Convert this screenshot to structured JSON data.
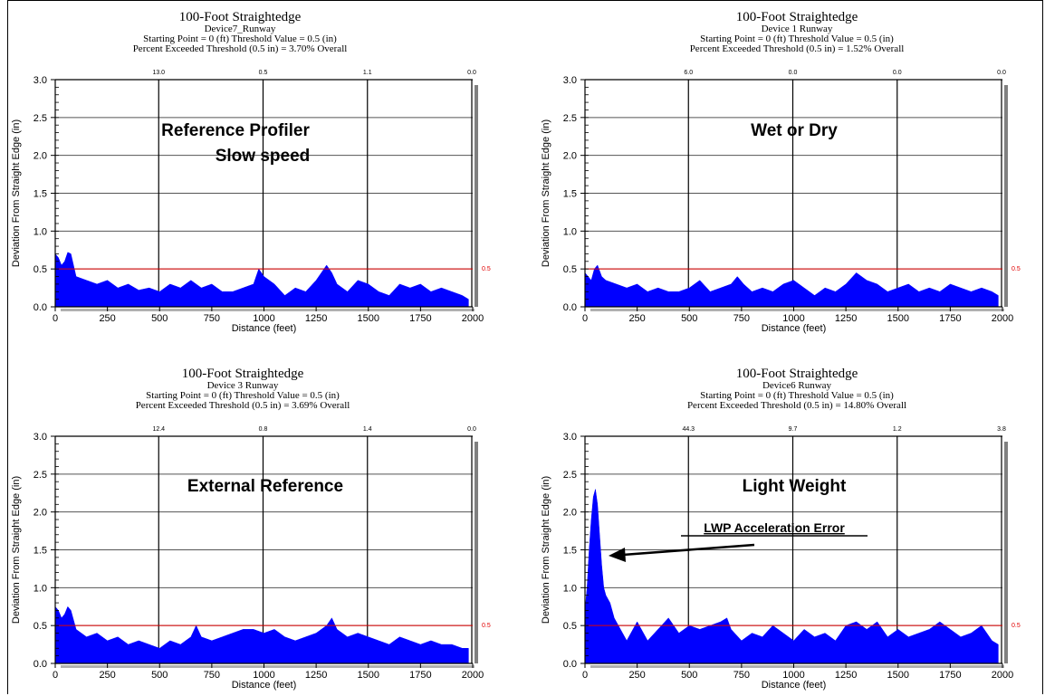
{
  "chart_data": [
    {
      "type": "area",
      "title": "100-Foot Straightedge",
      "subtitle": "Device7_Runway",
      "info_line": "Starting Point = 0 (ft)    Threshold Value = 0.5 (in)",
      "exceed_line": "Percent Exceeded Threshold (0.5 in) = 3.70% Overall",
      "annotation": [
        "Reference Profiler",
        "Slow speed"
      ],
      "xlabel": "Distance (feet)",
      "ylabel": "Deviation From Straight Edge (in)",
      "xlim": [
        0,
        2000
      ],
      "ylim": [
        0,
        3
      ],
      "xticks": [
        "0",
        "250",
        "500",
        "750",
        "1000",
        "1250",
        "1500",
        "1750",
        "2000"
      ],
      "yticks": [
        "0.0",
        "0.5",
        "1.0",
        "1.5",
        "2.0",
        "2.5",
        "3.0"
      ],
      "segment_labels": [
        "13.0",
        "0.5",
        "1.1",
        "0.0"
      ],
      "threshold": 0.5,
      "threshold_label": "0.5",
      "threshold_color": "#e00000",
      "fill_color": "#0000ff",
      "x": [
        0,
        15,
        30,
        45,
        60,
        75,
        100,
        150,
        200,
        250,
        300,
        350,
        400,
        450,
        500,
        550,
        600,
        650,
        700,
        750,
        800,
        850,
        900,
        950,
        975,
        1000,
        1050,
        1100,
        1150,
        1200,
        1250,
        1275,
        1300,
        1325,
        1350,
        1400,
        1450,
        1500,
        1550,
        1600,
        1650,
        1700,
        1750,
        1800,
        1850,
        1900,
        1950,
        1980
      ],
      "y": [
        0.7,
        0.65,
        0.55,
        0.6,
        0.72,
        0.7,
        0.4,
        0.35,
        0.3,
        0.35,
        0.25,
        0.3,
        0.22,
        0.25,
        0.2,
        0.3,
        0.25,
        0.35,
        0.25,
        0.3,
        0.2,
        0.2,
        0.25,
        0.3,
        0.5,
        0.4,
        0.3,
        0.15,
        0.25,
        0.2,
        0.35,
        0.45,
        0.55,
        0.45,
        0.3,
        0.2,
        0.35,
        0.3,
        0.2,
        0.15,
        0.3,
        0.25,
        0.3,
        0.2,
        0.25,
        0.2,
        0.15,
        0.1
      ]
    },
    {
      "type": "area",
      "title": "100-Foot Straightedge",
      "subtitle": "Device 1 Runway",
      "info_line": "Starting Point = 0 (ft)    Threshold Value = 0.5 (in)",
      "exceed_line": "Percent Exceeded Threshold (0.5 in) = 1.52% Overall",
      "annotation": [
        "Wet or Dry"
      ],
      "xlabel": "Distance (feet)",
      "ylabel": "Deviation From Straight Edge (in)",
      "xlim": [
        0,
        2000
      ],
      "ylim": [
        0,
        3
      ],
      "xticks": [
        "0",
        "250",
        "500",
        "750",
        "1000",
        "1250",
        "1500",
        "1750",
        "2000"
      ],
      "yticks": [
        "0.0",
        "0.5",
        "1.0",
        "1.5",
        "2.0",
        "2.5",
        "3.0"
      ],
      "segment_labels": [
        "6.0",
        "0.0",
        "0.0",
        "0.0"
      ],
      "threshold": 0.5,
      "threshold_label": "0.5",
      "threshold_color": "#e00000",
      "fill_color": "#0000ff",
      "x": [
        0,
        15,
        30,
        45,
        60,
        80,
        100,
        150,
        200,
        250,
        300,
        350,
        400,
        450,
        500,
        550,
        600,
        650,
        700,
        730,
        760,
        800,
        850,
        900,
        950,
        1000,
        1050,
        1100,
        1150,
        1200,
        1250,
        1300,
        1350,
        1400,
        1450,
        1500,
        1550,
        1600,
        1650,
        1700,
        1750,
        1800,
        1850,
        1900,
        1950,
        1980
      ],
      "y": [
        0.45,
        0.4,
        0.35,
        0.5,
        0.55,
        0.4,
        0.35,
        0.3,
        0.25,
        0.3,
        0.2,
        0.25,
        0.2,
        0.2,
        0.25,
        0.35,
        0.2,
        0.25,
        0.3,
        0.4,
        0.3,
        0.2,
        0.25,
        0.2,
        0.3,
        0.35,
        0.25,
        0.15,
        0.25,
        0.2,
        0.3,
        0.45,
        0.35,
        0.3,
        0.2,
        0.25,
        0.3,
        0.2,
        0.25,
        0.2,
        0.3,
        0.25,
        0.2,
        0.25,
        0.2,
        0.15
      ]
    },
    {
      "type": "area",
      "title": "100-Foot Straightedge",
      "subtitle": "Device 3 Runway",
      "info_line": "Starting Point = 0 (ft)    Threshold Value = 0.5 (in)",
      "exceed_line": "Percent Exceeded Threshold (0.5 in) = 3.69% Overall",
      "annotation": [
        "External Reference"
      ],
      "xlabel": "Distance (feet)",
      "ylabel": "Deviation From Straight Edge (in)",
      "xlim": [
        0,
        2000
      ],
      "ylim": [
        0,
        3
      ],
      "xticks": [
        "0",
        "250",
        "500",
        "750",
        "1000",
        "1250",
        "1500",
        "1750",
        "2000"
      ],
      "yticks": [
        "0.0",
        "0.5",
        "1.0",
        "1.5",
        "2.0",
        "2.5",
        "3.0"
      ],
      "segment_labels": [
        "12.4",
        "0.8",
        "1.4",
        "0.0"
      ],
      "threshold": 0.5,
      "threshold_label": "0.5",
      "threshold_color": "#e00000",
      "fill_color": "#0000ff",
      "x": [
        0,
        15,
        30,
        45,
        60,
        75,
        100,
        150,
        200,
        250,
        300,
        350,
        400,
        450,
        500,
        550,
        600,
        650,
        675,
        700,
        750,
        800,
        850,
        900,
        950,
        1000,
        1050,
        1100,
        1150,
        1200,
        1250,
        1300,
        1325,
        1350,
        1400,
        1450,
        1500,
        1550,
        1600,
        1650,
        1700,
        1750,
        1800,
        1850,
        1900,
        1950,
        1980
      ],
      "y": [
        0.75,
        0.7,
        0.6,
        0.65,
        0.75,
        0.7,
        0.45,
        0.35,
        0.4,
        0.3,
        0.35,
        0.25,
        0.3,
        0.25,
        0.2,
        0.3,
        0.25,
        0.35,
        0.5,
        0.35,
        0.3,
        0.35,
        0.4,
        0.45,
        0.45,
        0.4,
        0.45,
        0.35,
        0.3,
        0.35,
        0.4,
        0.5,
        0.6,
        0.45,
        0.35,
        0.4,
        0.35,
        0.3,
        0.25,
        0.35,
        0.3,
        0.25,
        0.3,
        0.25,
        0.25,
        0.2,
        0.2
      ]
    },
    {
      "type": "area",
      "title": "100-Foot Straightedge",
      "subtitle": "Device6 Runway",
      "info_line": "Starting Point = 0 (ft)    Threshold Value = 0.5 (in)",
      "exceed_line": "Percent Exceeded Threshold (0.5 in) = 14.80% Overall",
      "annotation": [
        "Light Weight"
      ],
      "arrow_note": "LWP Acceleration Error",
      "xlabel": "Distance (feet)",
      "ylabel": "Deviation From Straight Edge (in)",
      "xlim": [
        0,
        2000
      ],
      "ylim": [
        0,
        3
      ],
      "xticks": [
        "0",
        "250",
        "500",
        "750",
        "1000",
        "1250",
        "1500",
        "1750",
        "2000"
      ],
      "yticks": [
        "0.0",
        "0.5",
        "1.0",
        "1.5",
        "2.0",
        "2.5",
        "3.0"
      ],
      "segment_labels": [
        "44.3",
        "9.7",
        "1.2",
        "3.8"
      ],
      "threshold": 0.5,
      "threshold_label": "0.5",
      "threshold_color": "#e00000",
      "fill_color": "#0000ff",
      "x": [
        0,
        10,
        20,
        30,
        40,
        50,
        60,
        70,
        80,
        90,
        100,
        120,
        140,
        160,
        200,
        250,
        300,
        350,
        400,
        450,
        500,
        550,
        600,
        650,
        680,
        700,
        750,
        800,
        850,
        900,
        950,
        1000,
        1050,
        1100,
        1150,
        1200,
        1250,
        1300,
        1350,
        1400,
        1450,
        1500,
        1550,
        1600,
        1650,
        1700,
        1750,
        1800,
        1850,
        1900,
        1950,
        1980
      ],
      "y": [
        0.7,
        1.0,
        1.5,
        1.9,
        2.2,
        2.3,
        2.1,
        1.7,
        1.3,
        1.0,
        0.9,
        0.8,
        0.6,
        0.5,
        0.3,
        0.55,
        0.3,
        0.45,
        0.6,
        0.4,
        0.5,
        0.45,
        0.5,
        0.55,
        0.6,
        0.45,
        0.3,
        0.4,
        0.35,
        0.5,
        0.4,
        0.3,
        0.45,
        0.35,
        0.4,
        0.3,
        0.5,
        0.55,
        0.45,
        0.55,
        0.35,
        0.45,
        0.35,
        0.4,
        0.45,
        0.55,
        0.45,
        0.35,
        0.4,
        0.5,
        0.3,
        0.25
      ]
    }
  ]
}
